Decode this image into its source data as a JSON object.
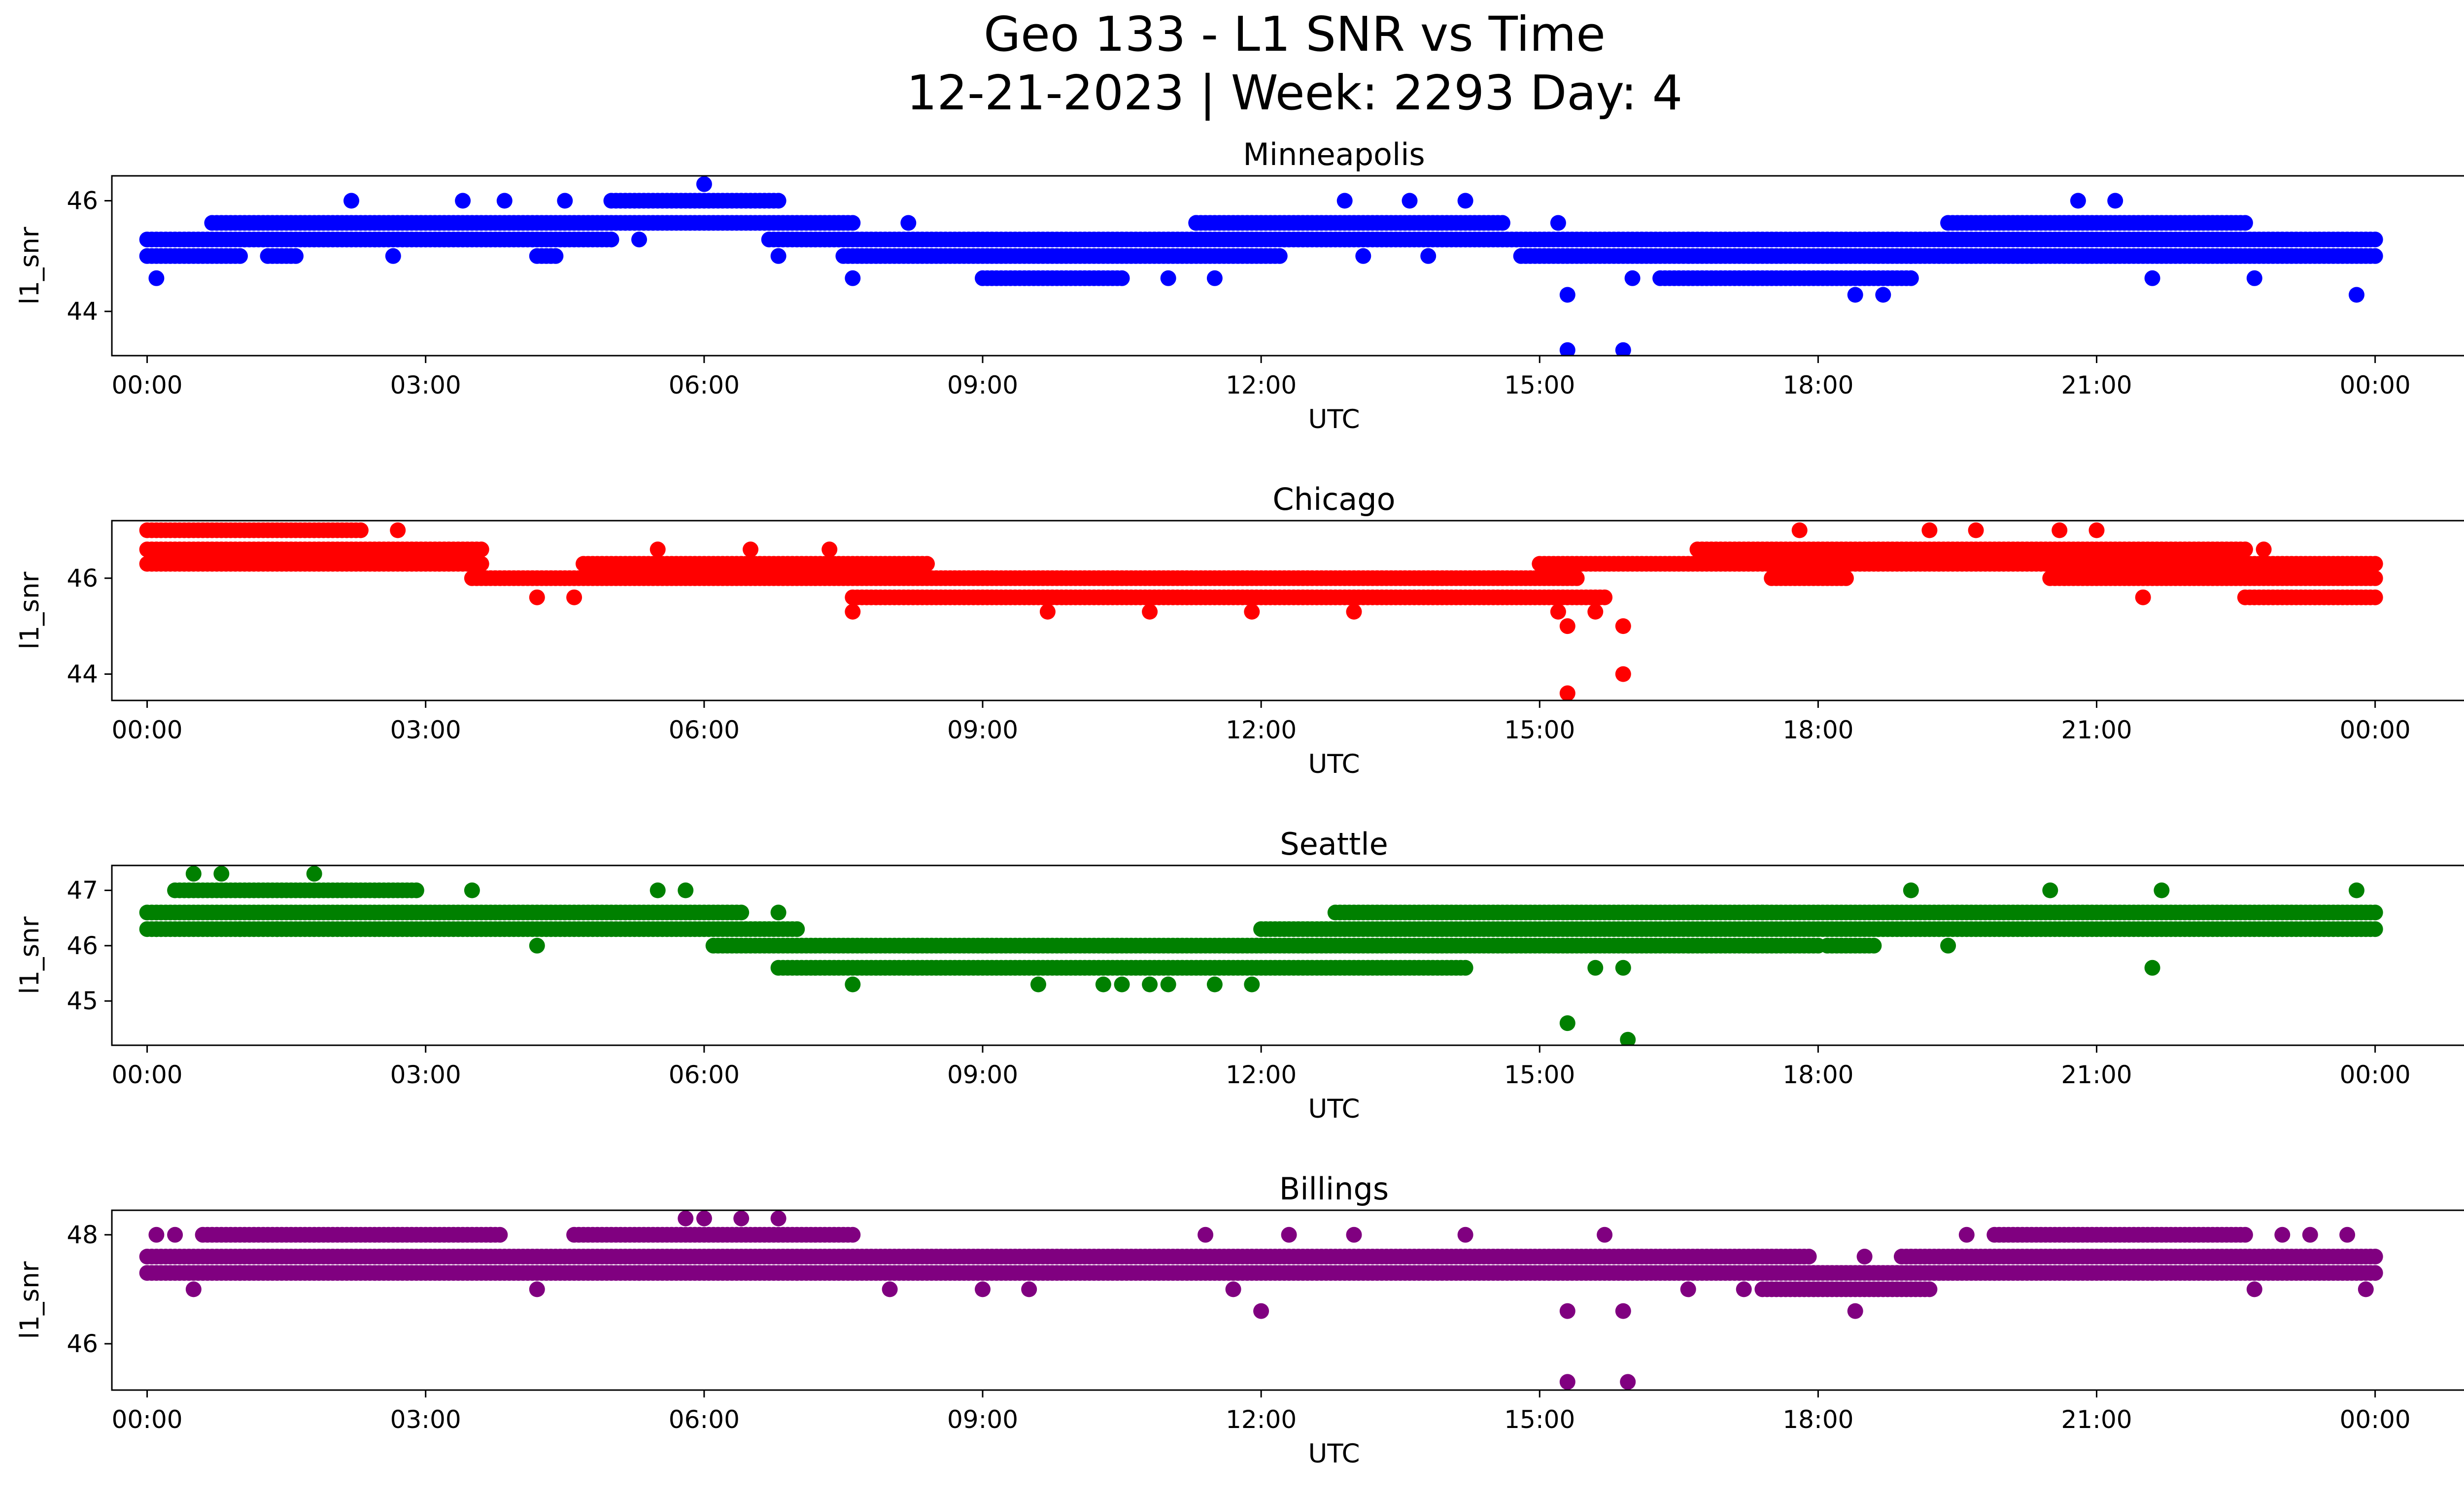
{
  "figure": {
    "title_line1": "Geo 133 - L1 SNR vs Time",
    "title_line2": "12-21-2023 | Week: 2293 Day: 4"
  },
  "chart_data": [
    {
      "type": "scatter",
      "title": "Minneapolis",
      "xlabel": "UTC",
      "ylabel": "l1_snr",
      "color": "#0000ff",
      "xlim_hours": [
        -0.38,
        25.95
      ],
      "ylim": [
        43.2,
        46.45
      ],
      "x_ticks": [
        "00:00",
        "03:00",
        "06:00",
        "09:00",
        "12:00",
        "15:00",
        "18:00",
        "21:00",
        "00:00"
      ],
      "y_ticks": [
        44,
        46
      ],
      "bands": [
        {
          "y": 45.3,
          "segments": [
            [
              0.0,
              5.0
            ],
            [
              6.7,
              24.0
            ]
          ]
        },
        {
          "y": 45.0,
          "segments": [
            [
              0.0,
              1.0
            ],
            [
              1.3,
              1.6
            ],
            [
              4.2,
              4.4
            ],
            [
              7.5,
              12.2
            ],
            [
              14.8,
              24.0
            ]
          ]
        },
        {
          "y": 45.6,
          "segments": [
            [
              0.7,
              7.6
            ],
            [
              11.3,
              14.6
            ],
            [
              19.4,
              22.6
            ]
          ]
        },
        {
          "y": 44.6,
          "segments": [
            [
              9.0,
              10.5
            ],
            [
              16.3,
              19.0
            ]
          ]
        },
        {
          "y": 46.0,
          "segments": [
            [
              5.0,
              6.8
            ]
          ]
        }
      ],
      "points": [
        [
          0.1,
          44.6
        ],
        [
          2.2,
          46.0
        ],
        [
          2.65,
          45.0
        ],
        [
          3.4,
          46.0
        ],
        [
          3.85,
          46.0
        ],
        [
          4.5,
          46.0
        ],
        [
          5.3,
          45.3
        ],
        [
          6.0,
          46.3
        ],
        [
          6.8,
          45.0
        ],
        [
          7.6,
          44.6
        ],
        [
          8.2,
          45.6
        ],
        [
          11.3,
          45.6
        ],
        [
          11.0,
          44.6
        ],
        [
          11.5,
          44.6
        ],
        [
          12.9,
          46.0
        ],
        [
          13.6,
          46.0
        ],
        [
          14.2,
          46.0
        ],
        [
          13.1,
          45.0
        ],
        [
          13.8,
          45.0
        ],
        [
          15.2,
          45.6
        ],
        [
          15.3,
          44.3
        ],
        [
          15.3,
          43.3
        ],
        [
          15.9,
          43.3
        ],
        [
          16.0,
          44.6
        ],
        [
          18.4,
          44.3
        ],
        [
          18.7,
          44.3
        ],
        [
          19.0,
          45.0
        ],
        [
          19.4,
          45.3
        ],
        [
          20.3,
          45.0
        ],
        [
          20.8,
          46.0
        ],
        [
          21.2,
          46.0
        ],
        [
          21.2,
          45.0
        ],
        [
          21.6,
          44.6
        ],
        [
          22.7,
          44.6
        ],
        [
          23.8,
          44.3
        ]
      ]
    },
    {
      "type": "scatter",
      "title": "Chicago",
      "xlabel": "UTC",
      "ylabel": "l1_snr",
      "color": "#ff0000",
      "xlim_hours": [
        -0.38,
        25.95
      ],
      "ylim": [
        43.45,
        47.2
      ],
      "x_ticks": [
        "00:00",
        "03:00",
        "06:00",
        "09:00",
        "12:00",
        "15:00",
        "18:00",
        "21:00",
        "00:00"
      ],
      "y_ticks": [
        44,
        46
      ],
      "bands": [
        {
          "y": 46.3,
          "segments": [
            [
              0.0,
              3.6
            ],
            [
              4.7,
              8.4
            ],
            [
              15.0,
              24.0
            ]
          ]
        },
        {
          "y": 46.6,
          "segments": [
            [
              0.0,
              3.6
            ],
            [
              16.7,
              22.6
            ]
          ]
        },
        {
          "y": 47.0,
          "segments": [
            [
              0.0,
              2.3
            ]
          ]
        },
        {
          "y": 46.0,
          "segments": [
            [
              3.5,
              15.4
            ],
            [
              17.5,
              18.3
            ],
            [
              20.5,
              24.0
            ]
          ]
        },
        {
          "y": 45.6,
          "segments": [
            [
              7.6,
              15.7
            ],
            [
              22.6,
              24.0
            ]
          ]
        }
      ],
      "points": [
        [
          2.7,
          47.0
        ],
        [
          4.2,
          45.6
        ],
        [
          4.6,
          45.6
        ],
        [
          5.5,
          46.6
        ],
        [
          6.5,
          46.6
        ],
        [
          7.35,
          46.6
        ],
        [
          7.6,
          45.3
        ],
        [
          9.7,
          45.3
        ],
        [
          10.8,
          45.3
        ],
        [
          11.9,
          45.3
        ],
        [
          13.0,
          45.3
        ],
        [
          15.2,
          45.3
        ],
        [
          15.3,
          45.0
        ],
        [
          15.3,
          43.6
        ],
        [
          15.6,
          45.3
        ],
        [
          15.9,
          45.0
        ],
        [
          15.9,
          44.0
        ],
        [
          17.8,
          47.0
        ],
        [
          19.2,
          47.0
        ],
        [
          19.7,
          47.0
        ],
        [
          20.6,
          47.0
        ],
        [
          21.0,
          47.0
        ],
        [
          21.5,
          45.6
        ],
        [
          22.8,
          46.6
        ]
      ]
    },
    {
      "type": "scatter",
      "title": "Seattle",
      "xlabel": "UTC",
      "ylabel": "l1_snr",
      "color": "#008000",
      "xlim_hours": [
        -0.38,
        25.95
      ],
      "ylim": [
        44.2,
        47.45
      ],
      "x_ticks": [
        "00:00",
        "03:00",
        "06:00",
        "09:00",
        "12:00",
        "15:00",
        "18:00",
        "21:00",
        "00:00"
      ],
      "y_ticks": [
        45,
        46,
        47
      ],
      "bands": [
        {
          "y": 46.6,
          "segments": [
            [
              0.0,
              6.4
            ],
            [
              12.8,
              24.0
            ]
          ]
        },
        {
          "y": 46.3,
          "segments": [
            [
              0.0,
              7.0
            ],
            [
              12.0,
              24.0
            ]
          ]
        },
        {
          "y": 47.0,
          "segments": [
            [
              0.3,
              2.9
            ]
          ]
        },
        {
          "y": 46.0,
          "segments": [
            [
              6.1,
              18.0
            ],
            [
              18.1,
              18.6
            ]
          ]
        },
        {
          "y": 45.6,
          "segments": [
            [
              6.8,
              14.2
            ]
          ]
        }
      ],
      "points": [
        [
          0.1,
          46.3
        ],
        [
          0.5,
          47.3
        ],
        [
          0.8,
          47.3
        ],
        [
          1.8,
          47.3
        ],
        [
          1.0,
          46.3
        ],
        [
          1.4,
          46.3
        ],
        [
          3.5,
          47.0
        ],
        [
          5.5,
          47.0
        ],
        [
          5.8,
          47.0
        ],
        [
          4.2,
          46.0
        ],
        [
          6.8,
          46.6
        ],
        [
          7.6,
          45.3
        ],
        [
          9.6,
          45.3
        ],
        [
          10.3,
          45.3
        ],
        [
          10.5,
          45.3
        ],
        [
          10.8,
          45.3
        ],
        [
          11.0,
          45.3
        ],
        [
          11.5,
          45.3
        ],
        [
          11.9,
          45.3
        ],
        [
          15.3,
          44.6
        ],
        [
          15.6,
          45.6
        ],
        [
          15.95,
          44.3
        ],
        [
          15.9,
          45.6
        ],
        [
          17.4,
          46.6
        ],
        [
          19.0,
          47.0
        ],
        [
          20.5,
          47.0
        ],
        [
          21.7,
          47.0
        ],
        [
          21.6,
          45.6
        ],
        [
          23.8,
          47.0
        ],
        [
          19.4,
          46.0
        ]
      ]
    },
    {
      "type": "scatter",
      "title": "Billings",
      "xlabel": "UTC",
      "ylabel": "l1_snr",
      "color": "#800080",
      "xlim_hours": [
        -0.38,
        25.95
      ],
      "ylim": [
        45.15,
        48.45
      ],
      "x_ticks": [
        "00:00",
        "03:00",
        "06:00",
        "09:00",
        "12:00",
        "15:00",
        "18:00",
        "21:00",
        "00:00"
      ],
      "y_ticks": [
        46,
        48
      ],
      "bands": [
        {
          "y": 47.6,
          "segments": [
            [
              0.0,
              17.9
            ],
            [
              18.9,
              24.0
            ]
          ]
        },
        {
          "y": 47.3,
          "segments": [
            [
              0.0,
              24.0
            ]
          ]
        },
        {
          "y": 48.0,
          "segments": [
            [
              0.6,
              3.8
            ],
            [
              4.6,
              7.6
            ],
            [
              19.9,
              22.6
            ]
          ]
        },
        {
          "y": 47.0,
          "segments": [
            [
              17.4,
              19.2
            ]
          ]
        }
      ],
      "points": [
        [
          0.1,
          48.0
        ],
        [
          0.3,
          48.0
        ],
        [
          0.5,
          47.0
        ],
        [
          1.0,
          47.3
        ],
        [
          3.7,
          48.0
        ],
        [
          4.2,
          47.0
        ],
        [
          5.3,
          47.3
        ],
        [
          5.8,
          48.3
        ],
        [
          6.0,
          48.3
        ],
        [
          6.4,
          48.3
        ],
        [
          6.8,
          48.3
        ],
        [
          7.0,
          47.3
        ],
        [
          8.0,
          47.0
        ],
        [
          9.0,
          47.0
        ],
        [
          9.5,
          47.0
        ],
        [
          11.4,
          48.0
        ],
        [
          11.7,
          47.0
        ],
        [
          12.0,
          46.6
        ],
        [
          12.3,
          48.0
        ],
        [
          13.0,
          48.0
        ],
        [
          14.2,
          48.0
        ],
        [
          15.3,
          46.6
        ],
        [
          15.3,
          45.3
        ],
        [
          15.7,
          48.0
        ],
        [
          15.9,
          46.6
        ],
        [
          15.95,
          45.3
        ],
        [
          16.6,
          47.0
        ],
        [
          17.2,
          47.0
        ],
        [
          18.4,
          46.6
        ],
        [
          18.5,
          47.6
        ],
        [
          19.6,
          48.0
        ],
        [
          19.9,
          47.3
        ],
        [
          21.6,
          47.3
        ],
        [
          22.7,
          47.0
        ],
        [
          23.0,
          48.0
        ],
        [
          23.3,
          48.0
        ],
        [
          23.7,
          48.0
        ],
        [
          23.9,
          47.0
        ]
      ]
    }
  ]
}
